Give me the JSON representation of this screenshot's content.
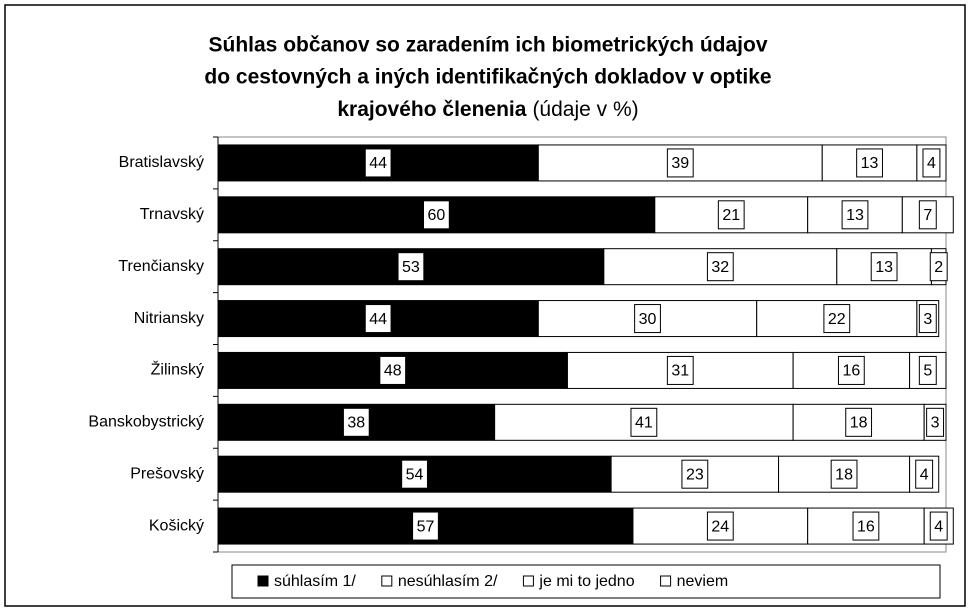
{
  "chart_data": {
    "type": "stacked_bar_horizontal",
    "title": [
      "Súhlas občanov so zaradením ich biometrických údajov",
      "do cestovných a iných identifikačných dokladov  v optike",
      "krajového členenia"
    ],
    "title_note": "(údaje v %)",
    "categories": [
      "Bratislavský",
      "Trnavský",
      "Trenčiansky",
      "Nitriansky",
      "Žilinský",
      "Banskobystrický",
      "Prešovský",
      "Košický"
    ],
    "series": [
      {
        "name": "súhlasím 1/",
        "color": "#000000",
        "values": [
          44,
          60,
          53,
          44,
          48,
          38,
          54,
          57
        ]
      },
      {
        "name": "nesúhlasím 2/",
        "color": "#ffffff",
        "values": [
          39,
          21,
          32,
          30,
          31,
          41,
          23,
          24
        ]
      },
      {
        "name": "je mi to jedno",
        "color": "#ffffff",
        "values": [
          13,
          13,
          13,
          22,
          16,
          18,
          18,
          16
        ]
      },
      {
        "name": "neviem",
        "color": "#ffffff",
        "values": [
          4,
          7,
          2,
          3,
          5,
          3,
          4,
          4
        ]
      }
    ],
    "xlim": [
      0,
      100
    ],
    "legend": "bottom"
  }
}
